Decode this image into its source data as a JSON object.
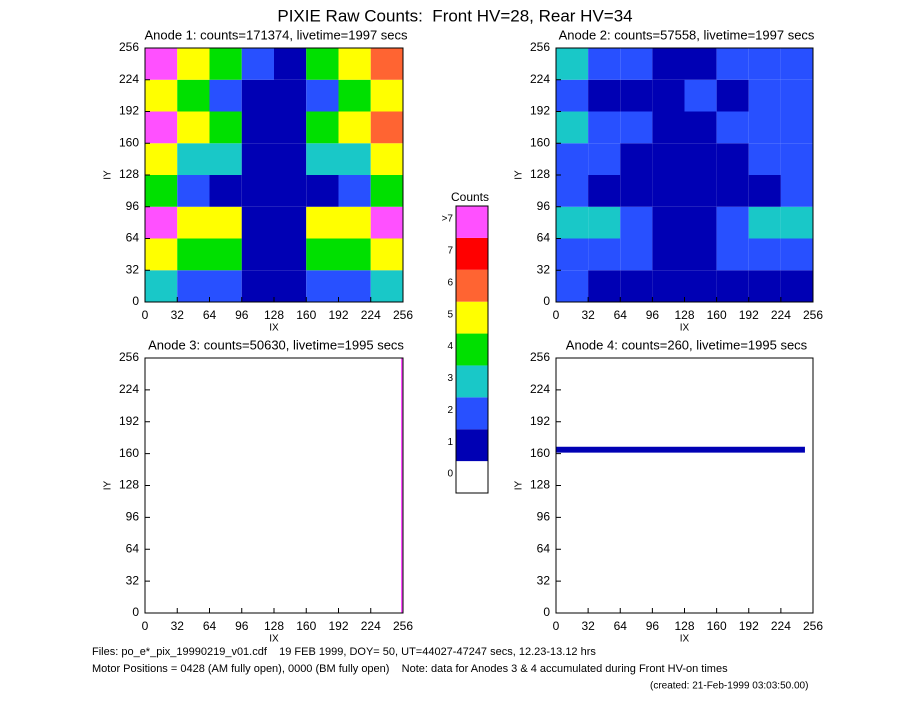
{
  "title": "PIXIE Raw Counts:  Front HV=28, Rear HV=34",
  "chart_data": [
    {
      "type": "heatmap",
      "title": "Anode 1: counts=171374, livetime=1997 secs",
      "xlabel": "IX",
      "ylabel": "IY",
      "xlim": [
        0,
        256
      ],
      "ylim": [
        0,
        256
      ],
      "xticks": [
        0,
        32,
        64,
        96,
        128,
        160,
        192,
        224,
        256
      ],
      "yticks": [
        0,
        32,
        64,
        96,
        128,
        160,
        192,
        224,
        256
      ],
      "xbins": [
        0,
        32,
        64,
        96,
        128,
        160,
        192,
        224,
        256
      ],
      "ybins": [
        0,
        32,
        64,
        96,
        128,
        160,
        192,
        224,
        256
      ],
      "z": [
        [
          3,
          2,
          2,
          1,
          1,
          2,
          2,
          3
        ],
        [
          5,
          4,
          4,
          1,
          1,
          4,
          4,
          5
        ],
        [
          8,
          5,
          5,
          1,
          1,
          5,
          5,
          8
        ],
        [
          4,
          2,
          1,
          1,
          1,
          1,
          2,
          4
        ],
        [
          5,
          3,
          3,
          1,
          1,
          3,
          3,
          5
        ],
        [
          8,
          5,
          4,
          1,
          1,
          4,
          5,
          6
        ],
        [
          5,
          4,
          2,
          1,
          1,
          2,
          4,
          5
        ],
        [
          8,
          5,
          4,
          2,
          1,
          4,
          5,
          6
        ]
      ]
    },
    {
      "type": "heatmap",
      "title": "Anode 2: counts=57558, livetime=1997 secs",
      "xlabel": "IX",
      "ylabel": "IY",
      "xlim": [
        0,
        256
      ],
      "ylim": [
        0,
        256
      ],
      "xticks": [
        0,
        32,
        64,
        96,
        128,
        160,
        192,
        224,
        256
      ],
      "yticks": [
        0,
        32,
        64,
        96,
        128,
        160,
        192,
        224,
        256
      ],
      "xbins": [
        0,
        32,
        64,
        96,
        128,
        160,
        192,
        224,
        256
      ],
      "ybins": [
        0,
        32,
        64,
        96,
        128,
        160,
        192,
        224,
        256
      ],
      "z": [
        [
          2,
          1,
          1,
          1,
          1,
          1,
          1,
          1
        ],
        [
          2,
          2,
          2,
          1,
          1,
          2,
          2,
          2
        ],
        [
          3,
          3,
          2,
          1,
          1,
          2,
          3,
          3
        ],
        [
          2,
          1,
          1,
          1,
          1,
          1,
          1,
          2
        ],
        [
          2,
          2,
          1,
          1,
          1,
          1,
          2,
          2
        ],
        [
          3,
          2,
          2,
          1,
          1,
          2,
          2,
          2
        ],
        [
          2,
          1,
          1,
          1,
          2,
          1,
          2,
          2
        ],
        [
          3,
          2,
          2,
          1,
          1,
          2,
          2,
          2
        ]
      ]
    },
    {
      "type": "heatmap",
      "title": "Anode 3: counts=50630, livetime=1995 secs",
      "xlabel": "IX",
      "ylabel": "IY",
      "xlim": [
        0,
        256
      ],
      "ylim": [
        0,
        256
      ],
      "xticks": [
        0,
        32,
        64,
        96,
        128,
        160,
        192,
        224,
        256
      ],
      "yticks": [
        0,
        32,
        64,
        96,
        128,
        160,
        192,
        224,
        256
      ],
      "xbins": [
        0,
        254,
        256
      ],
      "ybins": [
        0,
        256
      ],
      "z": [
        [
          0,
          8
        ]
      ]
    },
    {
      "type": "heatmap",
      "title": "Anode 4: counts=260, livetime=1995 secs",
      "xlabel": "IX",
      "ylabel": "IY",
      "xlim": [
        0,
        256
      ],
      "ylim": [
        0,
        256
      ],
      "xticks": [
        0,
        32,
        64,
        96,
        128,
        160,
        192,
        224,
        256
      ],
      "yticks": [
        0,
        32,
        64,
        96,
        128,
        160,
        192,
        224,
        256
      ],
      "xbins": [
        0,
        248,
        256
      ],
      "ybins": [
        0,
        161,
        167,
        256
      ],
      "z": [
        [
          0,
          0
        ],
        [
          1,
          0
        ],
        [
          0,
          0
        ]
      ]
    }
  ],
  "colorbar": {
    "title": "Counts",
    "ticks": [
      0,
      1,
      2,
      3,
      4,
      5,
      6,
      7,
      {
        "value": 8,
        "label": ">7"
      }
    ],
    "colors": [
      "#ffffff",
      "#0000b4",
      "#2850ff",
      "#19c8c8",
      "#00e000",
      "#ffff00",
      "#ff6432",
      "#ff0000",
      "#ff50ff"
    ]
  },
  "footer": {
    "files": "Files: po_e*_pix_19990219_v01.cdf    19 FEB 1999, DOY= 50, UT=44027-47247 secs, 12.23-13.12 hrs",
    "motor": "Motor Positions = 0428 (AM fully open), 0000 (BM fully open)    Note: data for Anodes 3 & 4 accumulated during Front HV-on times",
    "created": "(created: 21-Feb-1999 03:03:50.00)"
  }
}
